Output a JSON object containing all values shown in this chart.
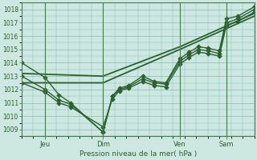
{
  "background_color": "#cce8e0",
  "grid_color": "#88b8b0",
  "line_color": "#2d6030",
  "spine_color": "#4a7a50",
  "title": "Pression niveau de la mer( hPa )",
  "ylim": [
    1008.5,
    1018.5
  ],
  "yticks": [
    1009,
    1010,
    1011,
    1012,
    1013,
    1014,
    1015,
    1016,
    1017,
    1018
  ],
  "xlim": [
    0,
    1.0
  ],
  "x_tick_positions": [
    0.1,
    0.35,
    0.68,
    0.88
  ],
  "x_tick_labels": [
    "Jeu",
    "Dim",
    "Ven",
    "Sam"
  ],
  "vline_positions": [
    0.1,
    0.35,
    0.68,
    0.88
  ],
  "series": [
    {
      "x": [
        0.0,
        0.1,
        0.16,
        0.21,
        0.35,
        0.39,
        0.42,
        0.46,
        0.52,
        0.57,
        0.62,
        0.68,
        0.72,
        0.76,
        0.8,
        0.85,
        0.88,
        0.93,
        1.0
      ],
      "y": [
        1014.0,
        1012.9,
        1011.6,
        1011.0,
        1008.8,
        1011.5,
        1012.1,
        1012.3,
        1013.0,
        1012.6,
        1012.5,
        1014.3,
        1014.8,
        1015.2,
        1015.1,
        1014.9,
        1017.3,
        1017.5,
        1018.2
      ],
      "marker": "D",
      "markersize": 2.8,
      "lw": 1.0
    },
    {
      "x": [
        0.0,
        0.1,
        0.16,
        0.21,
        0.35,
        0.39,
        0.42,
        0.46,
        0.52,
        0.57,
        0.62,
        0.68,
        0.72,
        0.76,
        0.8,
        0.85,
        0.88,
        0.93,
        1.0
      ],
      "y": [
        1013.0,
        1012.0,
        1011.2,
        1010.9,
        1008.8,
        1011.5,
        1012.0,
        1012.2,
        1012.8,
        1012.5,
        1012.4,
        1014.1,
        1014.6,
        1015.0,
        1014.9,
        1014.7,
        1017.0,
        1017.3,
        1018.0
      ],
      "marker": "D",
      "markersize": 2.8,
      "lw": 1.0
    },
    {
      "x": [
        0.0,
        0.1,
        0.16,
        0.21,
        0.35,
        0.39,
        0.42,
        0.46,
        0.52,
        0.57,
        0.62,
        0.68,
        0.72,
        0.76,
        0.8,
        0.85,
        0.88,
        0.93,
        1.0
      ],
      "y": [
        1012.5,
        1011.8,
        1011.0,
        1010.7,
        1009.2,
        1011.3,
        1011.9,
        1012.1,
        1012.6,
        1012.3,
        1012.2,
        1013.9,
        1014.4,
        1014.8,
        1014.7,
        1014.5,
        1016.8,
        1017.1,
        1017.8
      ],
      "marker": "D",
      "markersize": 2.8,
      "lw": 1.0
    },
    {
      "x": [
        0.0,
        0.35,
        0.68,
        1.0
      ],
      "y": [
        1012.5,
        1012.5,
        1015.0,
        1017.5
      ],
      "marker": null,
      "markersize": 0,
      "lw": 1.3
    },
    {
      "x": [
        0.0,
        0.35,
        0.68,
        1.0
      ],
      "y": [
        1013.2,
        1013.0,
        1015.2,
        1017.7
      ],
      "marker": null,
      "markersize": 0,
      "lw": 1.3
    }
  ]
}
